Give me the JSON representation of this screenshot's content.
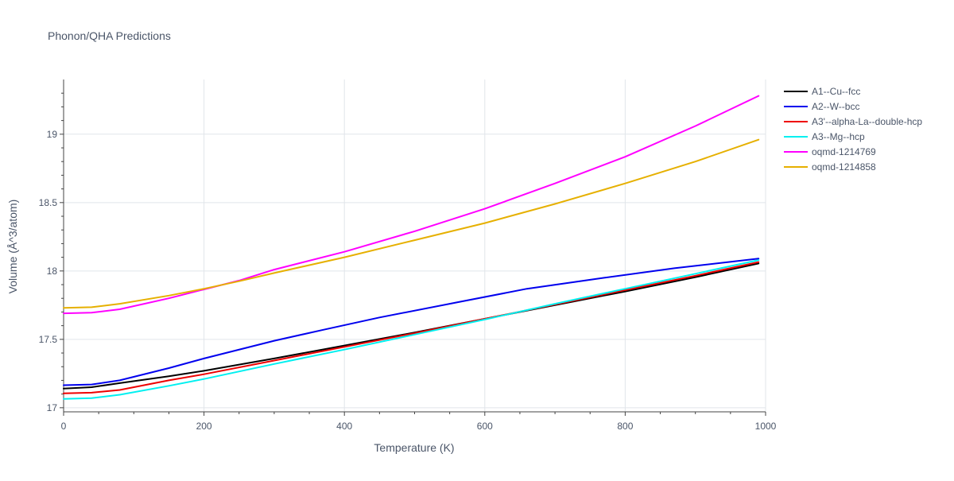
{
  "chart_data": {
    "type": "line",
    "title": "Phonon/QHA Predictions",
    "xlabel": "Temperature (K)",
    "ylabel": "Volume (Å^3/atom)",
    "xlim": [
      0,
      1000
    ],
    "ylim": [
      16.97,
      19.4
    ],
    "x_ticks": [
      0,
      200,
      400,
      600,
      800,
      1000
    ],
    "y_ticks": [
      17,
      17.5,
      18,
      18.5,
      19
    ],
    "x_tick_labels": [
      "0",
      "200",
      "400",
      "600",
      "800",
      "1000"
    ],
    "y_tick_labels": [
      "17",
      "17.5",
      "18",
      "18.5",
      "19"
    ],
    "grid": true,
    "legend_position": "right",
    "series": [
      {
        "name": "A1--Cu--fcc",
        "color": "#000000",
        "x": [
          0,
          40,
          80,
          150,
          200,
          300,
          400,
          500,
          600,
          700,
          800,
          900,
          990
        ],
        "y": [
          17.14,
          17.15,
          17.18,
          17.23,
          17.27,
          17.36,
          17.455,
          17.55,
          17.65,
          17.75,
          17.85,
          17.955,
          18.055
        ]
      },
      {
        "name": "A2--W--bcc",
        "color": "#0000ee",
        "x": [
          0,
          40,
          80,
          150,
          200,
          300,
          370,
          450,
          560,
          660,
          770,
          870,
          990
        ],
        "y": [
          17.165,
          17.17,
          17.2,
          17.29,
          17.36,
          17.49,
          17.57,
          17.66,
          17.77,
          17.87,
          17.95,
          18.02,
          18.09
        ]
      },
      {
        "name": "A3'--alpha-La--double-hcp",
        "color": "#ee0000",
        "x": [
          0,
          40,
          80,
          150,
          200,
          300,
          400,
          500,
          600,
          700,
          800,
          900,
          990
        ],
        "y": [
          17.105,
          17.11,
          17.13,
          17.2,
          17.245,
          17.345,
          17.445,
          17.545,
          17.65,
          17.755,
          17.86,
          17.965,
          18.065
        ]
      },
      {
        "name": "A3--Mg--hcp",
        "color": "#00f0f0",
        "x": [
          0,
          40,
          80,
          150,
          200,
          300,
          400,
          500,
          600,
          700,
          800,
          900,
          990
        ],
        "y": [
          17.065,
          17.07,
          17.095,
          17.16,
          17.21,
          17.32,
          17.425,
          17.535,
          17.645,
          17.76,
          17.87,
          17.98,
          18.08
        ]
      },
      {
        "name": "oqmd-1214769",
        "color": "#ff00ff",
        "x": [
          0,
          40,
          80,
          150,
          200,
          250,
          300,
          400,
          500,
          600,
          700,
          800,
          900,
          990
        ],
        "y": [
          17.69,
          17.695,
          17.72,
          17.8,
          17.865,
          17.93,
          18.01,
          18.14,
          18.29,
          18.455,
          18.64,
          18.835,
          19.06,
          19.28
        ]
      },
      {
        "name": "oqmd-1214858",
        "color": "#e6b000",
        "x": [
          0,
          40,
          80,
          150,
          200,
          250,
          300,
          400,
          500,
          600,
          700,
          800,
          900,
          990
        ],
        "y": [
          17.73,
          17.735,
          17.76,
          17.82,
          17.87,
          17.925,
          17.985,
          18.1,
          18.225,
          18.35,
          18.49,
          18.64,
          18.8,
          18.96
        ]
      }
    ]
  }
}
